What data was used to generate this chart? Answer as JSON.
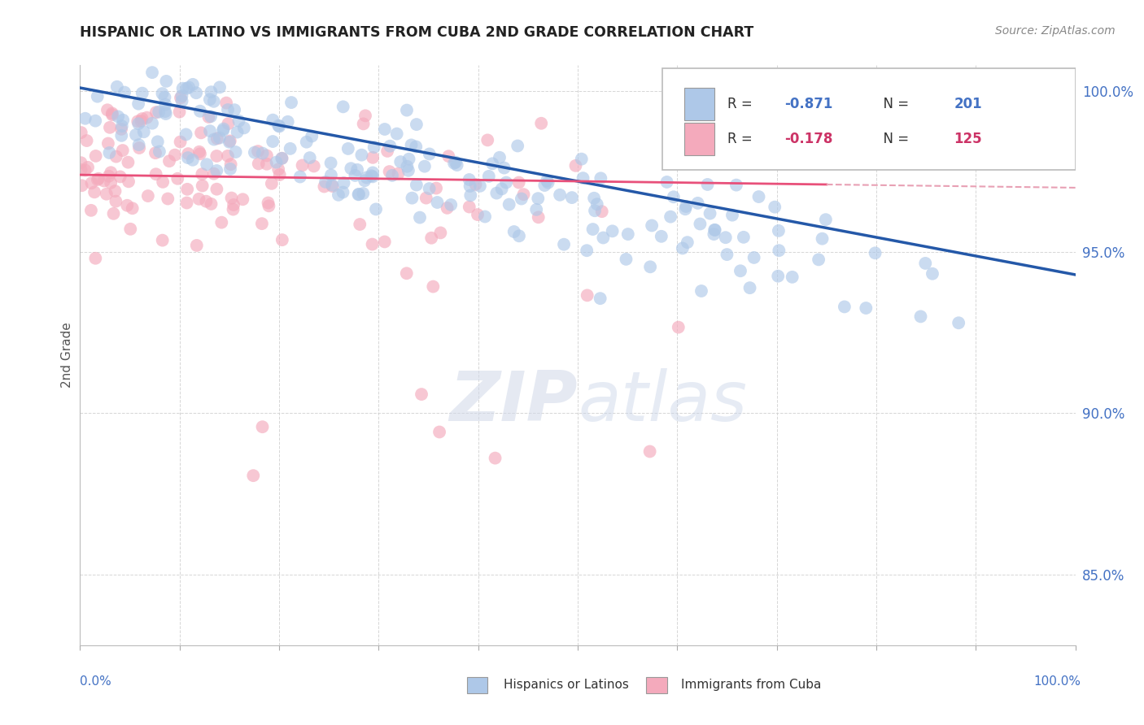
{
  "title": "HISPANIC OR LATINO VS IMMIGRANTS FROM CUBA 2ND GRADE CORRELATION CHART",
  "source": "Source: ZipAtlas.com",
  "ylabel": "2nd Grade",
  "blue_label": "Hispanics or Latinos",
  "pink_label": "Immigrants from Cuba",
  "blue_R": -0.871,
  "blue_N": 201,
  "pink_R": -0.178,
  "pink_N": 125,
  "blue_color": "#aec8e8",
  "pink_color": "#f4aabc",
  "blue_line_color": "#2458a8",
  "pink_line_color": "#e8507a",
  "pink_line_dash_color": "#e8a0b4",
  "xlim": [
    0.0,
    1.0
  ],
  "ylim": [
    0.828,
    1.008
  ],
  "yticks": [
    0.85,
    0.9,
    0.95,
    1.0
  ],
  "ytick_labels": [
    "85.0%",
    "90.0%",
    "95.0%",
    "100.0%"
  ]
}
